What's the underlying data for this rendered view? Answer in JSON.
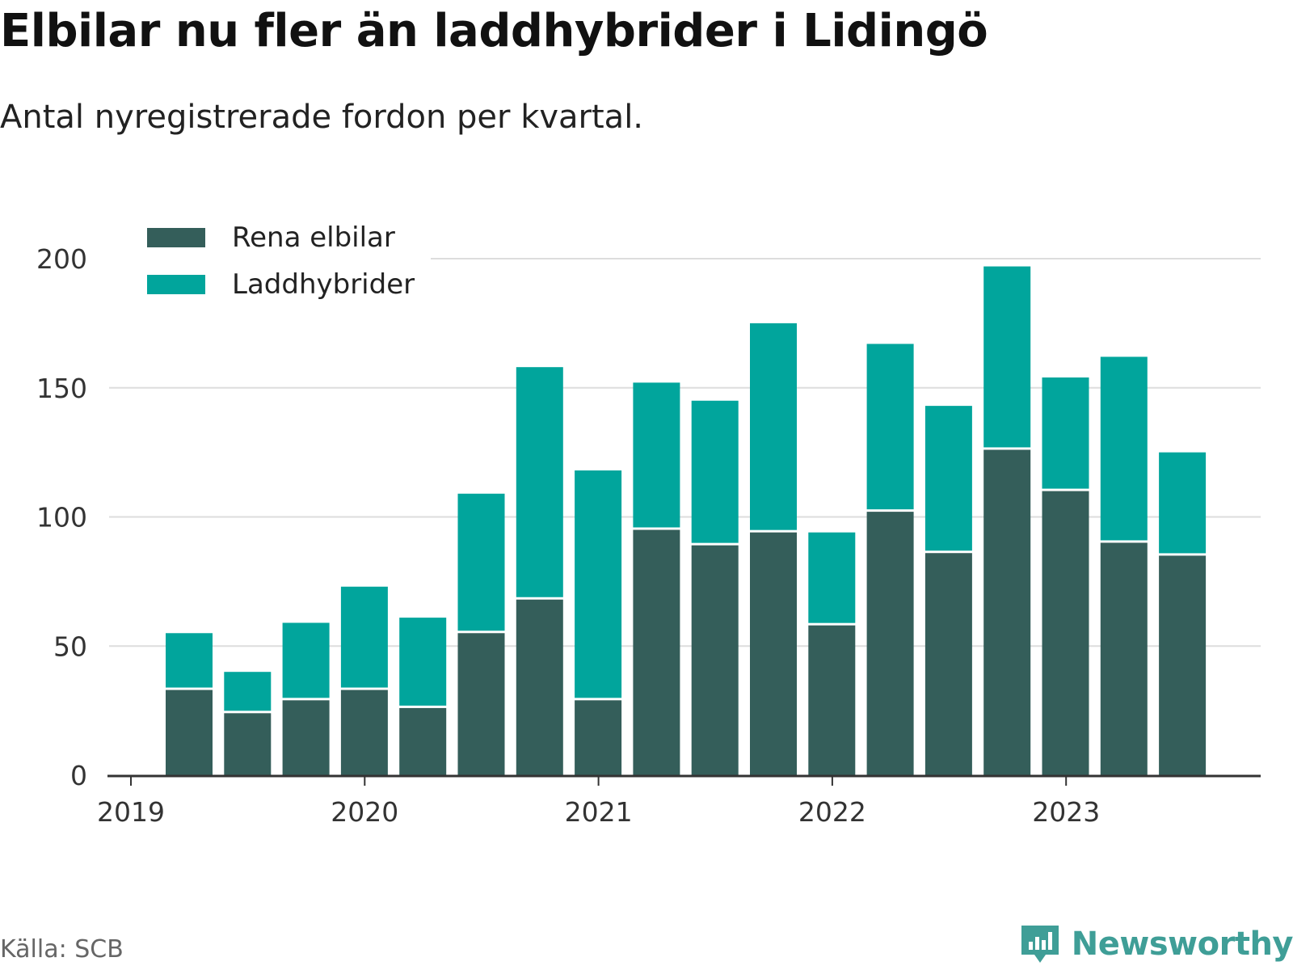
{
  "title": "Elbilar nu fler än laddhybrider i Lidingö",
  "subtitle": "Antal nyregistrerade fordon per kvartal.",
  "source": "Källa: SCB",
  "brand": "Newsworthy",
  "colors": {
    "elbil": "#345e5a",
    "laddhybrid": "#01a59c",
    "grid": "#dddddd",
    "axis": "#333333",
    "brand": "#3f9e97"
  },
  "chart_data": {
    "type": "bar",
    "stacked": true,
    "title": "Elbilar nu fler än laddhybrider i Lidingö",
    "subtitle": "Antal nyregistrerade fordon per kvartal.",
    "xlabel": "",
    "ylabel": "",
    "ylim": [
      0,
      200
    ],
    "yticks": [
      0,
      50,
      100,
      150,
      200
    ],
    "xticks": [
      "2019",
      "2020",
      "2021",
      "2022",
      "2023"
    ],
    "legend_position": "top-left",
    "categories": [
      "2019 Q2",
      "2019 Q3",
      "2019 Q4",
      "2020 Q1",
      "2020 Q2",
      "2020 Q3",
      "2020 Q4",
      "2021 Q1",
      "2021 Q2",
      "2021 Q3",
      "2021 Q4",
      "2022 Q1",
      "2022 Q2",
      "2022 Q3",
      "2022 Q4",
      "2023 Q1",
      "2023 Q2",
      "2023 Q3"
    ],
    "series": [
      {
        "name": "Rena elbilar",
        "values": [
          33,
          24,
          29,
          33,
          26,
          55,
          68,
          29,
          95,
          89,
          94,
          58,
          102,
          86,
          126,
          110,
          90,
          85
        ]
      },
      {
        "name": "Laddhybrider",
        "values": [
          22,
          16,
          30,
          40,
          35,
          54,
          90,
          89,
          57,
          56,
          81,
          36,
          65,
          57,
          71,
          44,
          72,
          40
        ]
      }
    ]
  }
}
